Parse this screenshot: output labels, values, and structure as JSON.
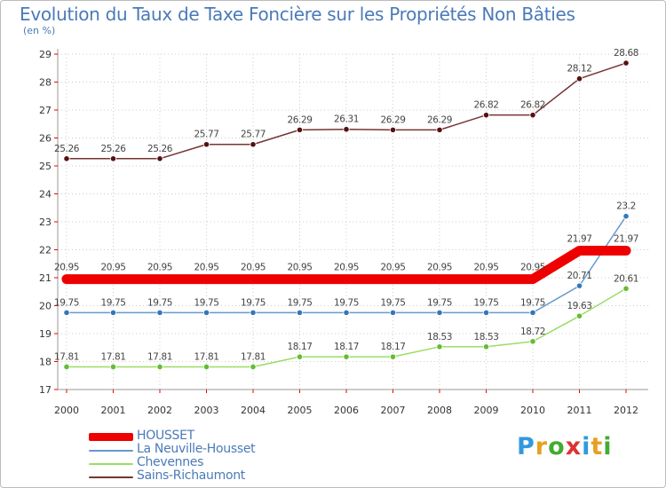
{
  "title": "Evolution du Taux de Taxe Foncière sur les Propriétés Non Bâties",
  "unit_label": "(en %)",
  "logo_text": "Proxiti",
  "logo_colors": [
    "#3399dd",
    "#e8a020",
    "#44aa33",
    "#dd3333",
    "#3399dd",
    "#e8a020",
    "#44aa33"
  ],
  "chart_data": {
    "type": "line",
    "title": "Evolution du Taux de Taxe Foncière sur les Propriétés Non Bâties",
    "xlabel": "",
    "ylabel": "(en %)",
    "ylim": [
      17,
      29
    ],
    "y_ticks": [
      17,
      18,
      19,
      20,
      21,
      22,
      23,
      24,
      25,
      26,
      27,
      28,
      29
    ],
    "categories": [
      "2000",
      "2001",
      "2002",
      "2003",
      "2004",
      "2005",
      "2006",
      "2007",
      "2008",
      "2009",
      "2010",
      "2011",
      "2012"
    ],
    "legend_position": "bottom-left",
    "series": [
      {
        "name": "HOUSSET",
        "color": "#ee0000",
        "marker_color": "#ee0000",
        "values": [
          20.95,
          20.95,
          20.95,
          20.95,
          20.95,
          20.95,
          20.95,
          20.95,
          20.95,
          20.95,
          20.95,
          21.97,
          21.97
        ],
        "labels": [
          "20.95",
          "20.95",
          "20.95",
          "20.95",
          "20.95",
          "20.95",
          "20.95",
          "20.95",
          "20.95",
          "20.95",
          "20.95",
          "21.97",
          "21.97"
        ]
      },
      {
        "name": "La Neuville-Housset",
        "color": "#6699cc",
        "marker_color": "#3377bb",
        "values": [
          19.75,
          19.75,
          19.75,
          19.75,
          19.75,
          19.75,
          19.75,
          19.75,
          19.75,
          19.75,
          19.75,
          20.71,
          23.2
        ],
        "labels": [
          "19.75",
          "19.75",
          "19.75",
          "19.75",
          "19.75",
          "19.75",
          "19.75",
          "19.75",
          "19.75",
          "19.75",
          "19.75",
          "20.71",
          "23.2"
        ]
      },
      {
        "name": "Chevennes",
        "color": "#99dd66",
        "marker_color": "#66bb33",
        "values": [
          17.81,
          17.81,
          17.81,
          17.81,
          17.81,
          18.17,
          18.17,
          18.17,
          18.53,
          18.53,
          18.72,
          19.63,
          20.61
        ],
        "labels": [
          "17.81",
          "17.81",
          "17.81",
          "17.81",
          "17.81",
          "18.17",
          "18.17",
          "18.17",
          "18.53",
          "18.53",
          "18.72",
          "19.63",
          "20.61"
        ]
      },
      {
        "name": "Sains-Richaumont",
        "color": "#773333",
        "marker_color": "#551111",
        "values": [
          25.26,
          25.26,
          25.26,
          25.77,
          25.77,
          26.29,
          26.31,
          26.29,
          26.29,
          26.82,
          26.82,
          28.12,
          28.68
        ],
        "labels": [
          "25.26",
          "25.26",
          "25.26",
          "25.77",
          "25.77",
          "26.29",
          "26.31",
          "26.29",
          "26.29",
          "26.82",
          "26.82",
          "28.12",
          "28.68"
        ]
      }
    ]
  }
}
